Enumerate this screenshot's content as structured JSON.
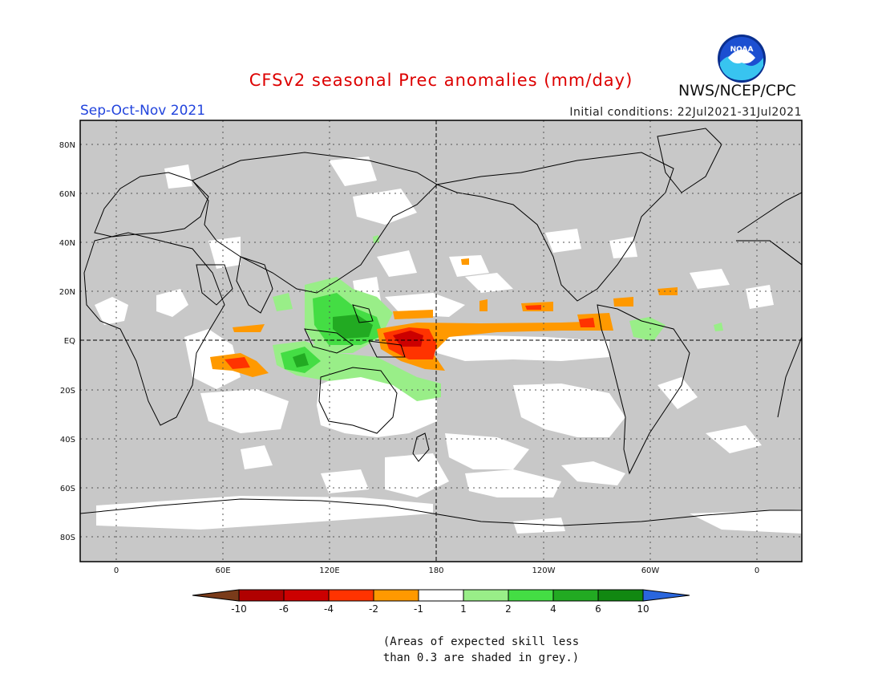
{
  "header": {
    "title": "CFSv2 seasonal Prec anomalies (mm/day)",
    "title_color": "#dd0000",
    "season": "Sep-Oct-Nov 2021",
    "season_color": "#2244dd",
    "initial_conditions": "Initial conditions: 22Jul2021-31Jul2021",
    "agency": "NWS/NCEP/CPC",
    "logo_text": "NOAA"
  },
  "map": {
    "land_mask_color": "#c8c8c8",
    "lat_labels": [
      "80N",
      "60N",
      "40N",
      "20N",
      "EQ",
      "20S",
      "40S",
      "60S",
      "80S"
    ],
    "lon_labels": [
      "0",
      "60E",
      "120E",
      "180",
      "120W",
      "60W",
      "0"
    ]
  },
  "colorbar": {
    "ticks": [
      "-10",
      "-6",
      "-4",
      "-2",
      "-1",
      "1",
      "2",
      "4",
      "6",
      "10"
    ],
    "colors": [
      "#7a3b1a",
      "#b00000",
      "#cc0000",
      "#ff3300",
      "#ff9900",
      "#ffffff",
      "#99ee88",
      "#44dd44",
      "#22aa22",
      "#118811",
      "#2a66dd"
    ]
  },
  "note": {
    "line1": "(Areas of expected skill less",
    "line2": "than 0.3 are shaded in grey.)"
  }
}
